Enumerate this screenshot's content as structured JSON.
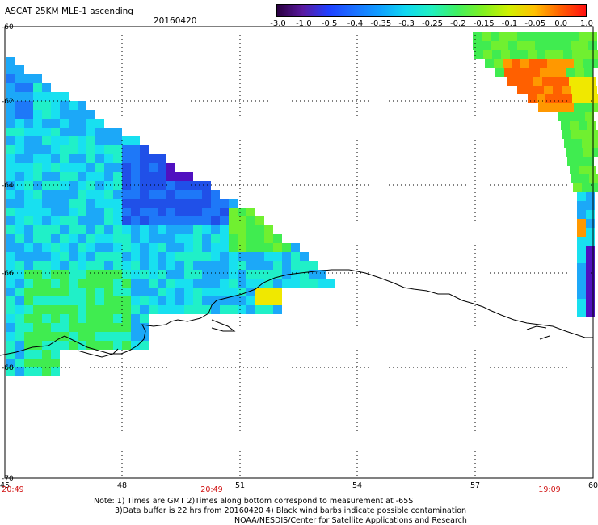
{
  "header": {
    "title": "ASCAT 25KM MLE-1 ascending",
    "date": "20160420"
  },
  "colorbar": {
    "ticks": [
      "-3.0",
      "-1.0",
      "-0.5",
      "-0.4",
      "-0.35",
      "-0.3",
      "-0.25",
      "-0.2",
      "-0.15",
      "-0.1",
      "-0.05",
      "0.0",
      "1.0"
    ],
    "colors": [
      "#2a0040",
      "#5a1aa0",
      "#2040ff",
      "#1a70ff",
      "#10a0ff",
      "#10d8f0",
      "#20f0c0",
      "#40f060",
      "#80f020",
      "#d0f000",
      "#ffc000",
      "#ff6000",
      "#ff1010"
    ]
  },
  "axes": {
    "lat_labels": [
      "-60",
      "-62",
      "-64",
      "-66",
      "-68",
      "-70"
    ],
    "lon_labels": [
      "45",
      "48",
      "51",
      "54",
      "57",
      "60"
    ],
    "time_labels": [
      "20:49",
      "20:49",
      "19:09"
    ]
  },
  "notes": {
    "line1": "Note: 1) Times are GMT 2)Times along bottom correspond to measurement at -65S",
    "line2": "3)Data buffer is 22 hrs from 20160420 4) Black wind barbs indicate possible contamination",
    "line3": "NOAA/NESDIS/Center for Satellite Applications and Research"
  }
}
